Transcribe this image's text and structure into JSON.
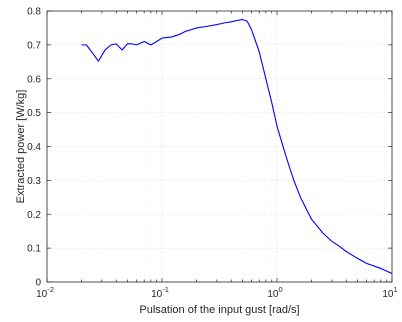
{
  "chart_data": {
    "type": "line",
    "title": "",
    "xlabel": "Pulsation of the input gust [rad/s]",
    "ylabel": "Extracted power [W/kg]",
    "xscale": "log",
    "xlim": [
      0.01,
      10
    ],
    "ylim": [
      0,
      0.8
    ],
    "grid": true,
    "x_tick_labels": [
      {
        "base": "10",
        "exp": "-2"
      },
      {
        "base": "10",
        "exp": "-1"
      },
      {
        "base": "10",
        "exp": "0"
      },
      {
        "base": "10",
        "exp": "1"
      }
    ],
    "y_tick_labels": [
      "0",
      "0.1",
      "0.2",
      "0.3",
      "0.4",
      "0.5",
      "0.6",
      "0.7",
      "0.8"
    ],
    "series": [
      {
        "color": "#0000ff",
        "x": [
          0.02,
          0.022,
          0.025,
          0.028,
          0.032,
          0.036,
          0.04,
          0.045,
          0.05,
          0.055,
          0.06,
          0.07,
          0.08,
          0.09,
          0.1,
          0.12,
          0.14,
          0.16,
          0.18,
          0.2,
          0.25,
          0.3,
          0.35,
          0.4,
          0.45,
          0.5,
          0.55,
          0.6,
          0.7,
          0.8,
          0.9,
          1.0,
          1.2,
          1.4,
          1.6,
          1.8,
          2.0,
          2.5,
          3.0,
          3.5,
          4.0,
          5.0,
          6.0,
          7.0,
          8.0,
          9.0,
          10.0
        ],
        "y": [
          0.7,
          0.7,
          0.675,
          0.652,
          0.685,
          0.7,
          0.703,
          0.685,
          0.703,
          0.703,
          0.7,
          0.71,
          0.7,
          0.71,
          0.72,
          0.723,
          0.73,
          0.74,
          0.745,
          0.75,
          0.755,
          0.76,
          0.765,
          0.768,
          0.772,
          0.775,
          0.77,
          0.745,
          0.68,
          0.6,
          0.53,
          0.46,
          0.37,
          0.3,
          0.25,
          0.215,
          0.185,
          0.145,
          0.12,
          0.105,
          0.09,
          0.07,
          0.055,
          0.047,
          0.04,
          0.032,
          0.025
        ]
      }
    ]
  }
}
